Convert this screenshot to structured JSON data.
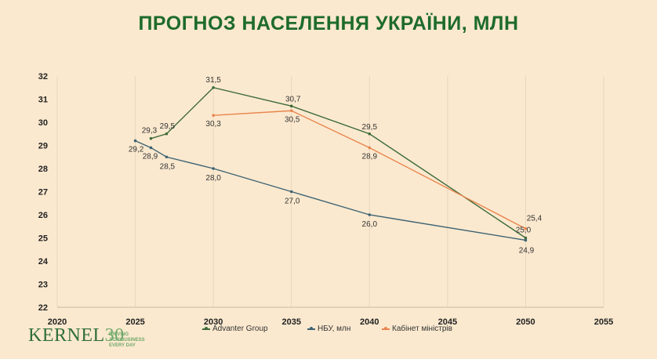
{
  "title": "ПРОГНОЗ НАСЕЛЕННЯ УКРАЇНИ, МЛН",
  "logo": {
    "brand": "KERNEL",
    "number": "30",
    "tagline": [
      "DRIVING",
      "AGRIBUSINESS",
      "EVERY DAY"
    ]
  },
  "chart_data": {
    "type": "line",
    "title": "ПРОГНОЗ НАСЕЛЕННЯ УКРАЇНИ, МЛН",
    "xlim": [
      2020,
      2055
    ],
    "ylim": [
      22,
      32
    ],
    "xticks": [
      2020,
      2025,
      2030,
      2035,
      2040,
      2045,
      2050,
      2055
    ],
    "yticks": [
      22,
      23,
      24,
      25,
      26,
      27,
      28,
      29,
      30,
      31,
      32
    ],
    "grid": "vertical",
    "legend": "bottom",
    "series": [
      {
        "name": "Advanter Group",
        "color": "#3d6b3a",
        "x": [
          2026,
          2027,
          2030,
          2035,
          2040,
          2050
        ],
        "y": [
          29.3,
          29.5,
          31.5,
          30.7,
          29.5,
          25.0
        ],
        "labels": [
          "29,3",
          "29,5",
          "31,5",
          "30,7",
          "29,5",
          "25,0"
        ]
      },
      {
        "name": "НБУ, млн",
        "color": "#3d6373",
        "x": [
          2025,
          2026,
          2027,
          2030,
          2035,
          2040,
          2050
        ],
        "y": [
          29.2,
          28.9,
          28.5,
          28.0,
          27.0,
          26.0,
          24.9
        ],
        "labels": [
          "29,2",
          "28,9",
          "28,5",
          "28,0",
          "27,0",
          "26,0",
          "24,9"
        ]
      },
      {
        "name": "Кабінет міністрів",
        "color": "#e8854e",
        "x": [
          2030,
          2035,
          2040,
          2050
        ],
        "y": [
          30.3,
          30.5,
          28.9,
          25.4
        ],
        "labels": [
          "30,3",
          "30,5",
          "28,9",
          "25,4"
        ]
      }
    ]
  }
}
